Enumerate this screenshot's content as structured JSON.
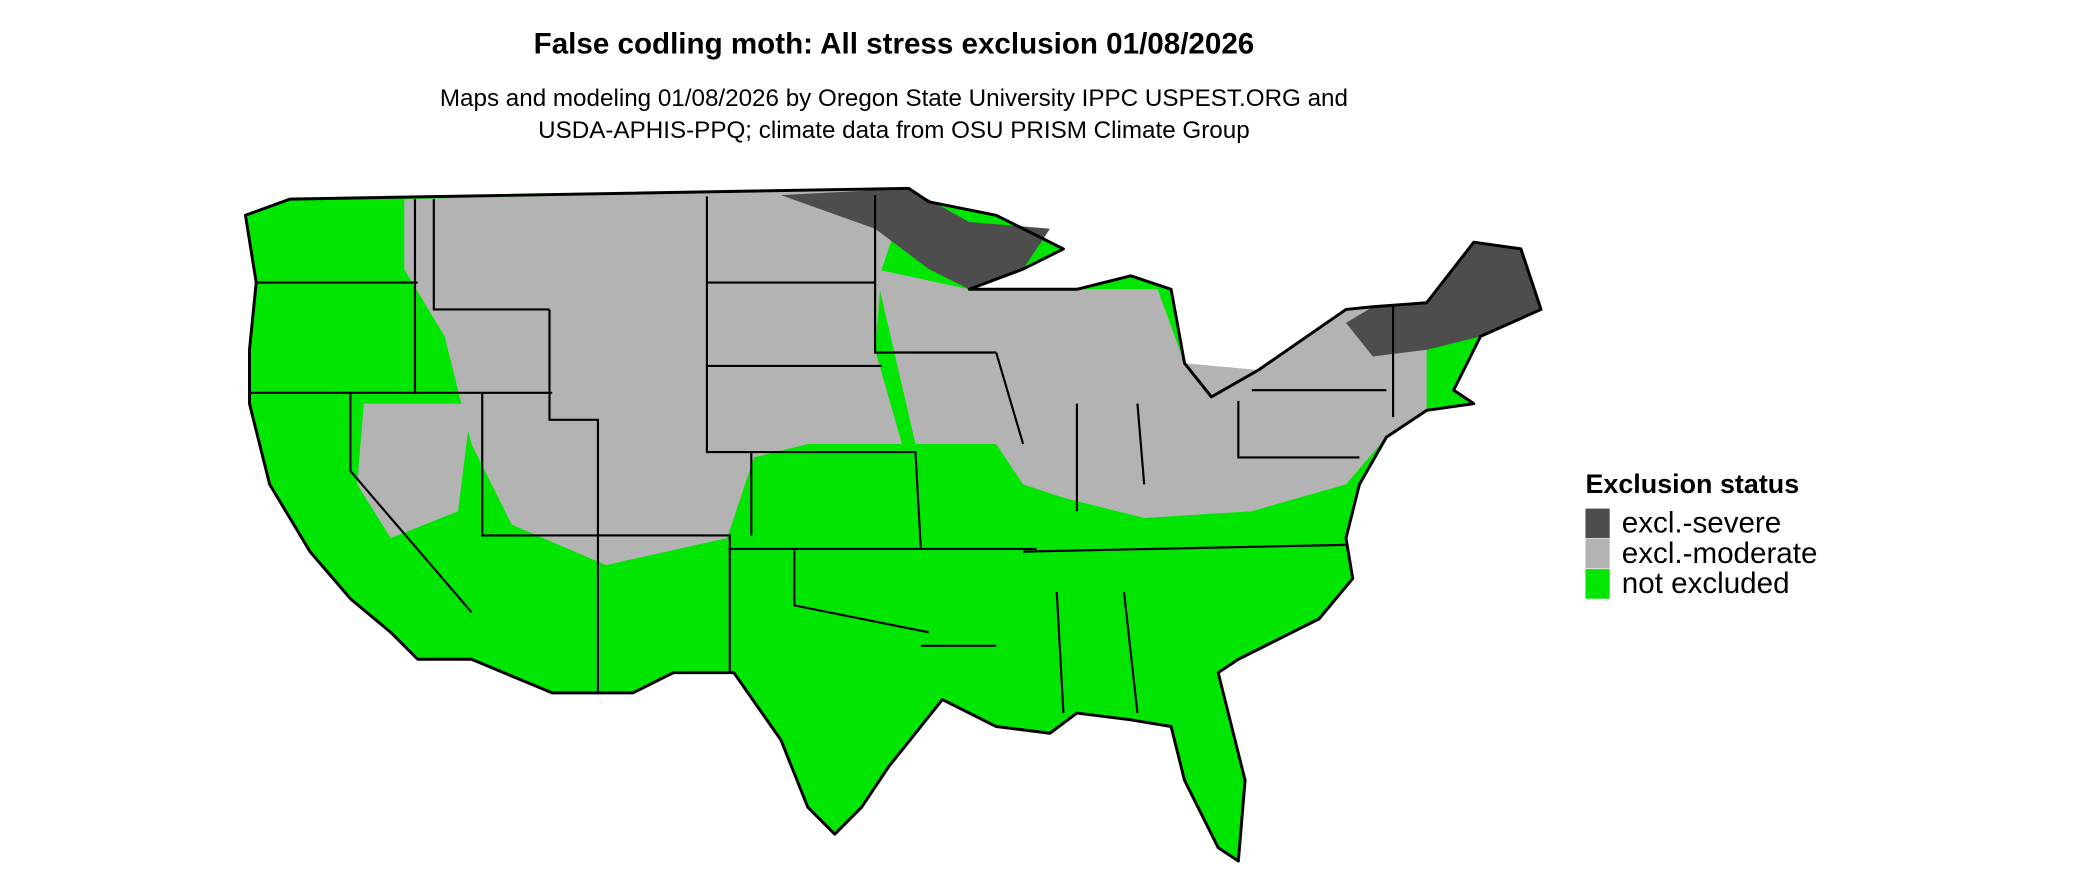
{
  "title": "False codling moth: All stress exclusion 01/08/2026",
  "subtitle": [
    "Maps and modeling 01/08/2026 by Oregon State University IPPC USPEST.ORG and",
    "USDA-APHIS-PPQ; climate data from OSU PRISM Climate Group"
  ],
  "legend": {
    "title": "Exclusion status",
    "items": [
      {
        "label": "excl.-severe",
        "color": "#4d4d4d"
      },
      {
        "label": "excl.-moderate",
        "color": "#b3b3b3"
      },
      {
        "label": "not excluded",
        "color": "#00e600"
      }
    ]
  }
}
